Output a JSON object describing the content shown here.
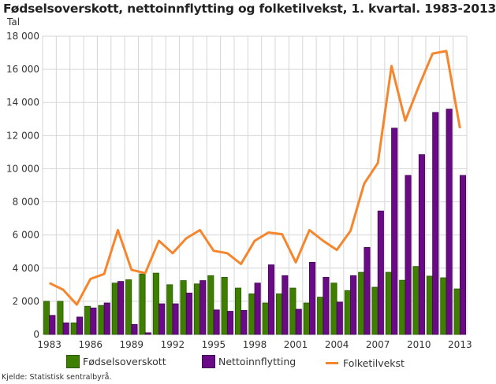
{
  "title": "Fødselsoverskott, nettoinnflytting og folketilvekst, 1. kvartal. 1983-2013",
  "unit_label": "Tal",
  "source": "Kjelde: Statistisk sentralbyrå.",
  "legend": [
    {
      "label": "Fødselsoverskott",
      "color": "#3f7f00",
      "kind": "bar"
    },
    {
      "label": "Nettoinnflytting",
      "color": "#6b0a86",
      "kind": "bar"
    },
    {
      "label": "Folketilvekst",
      "color": "#f5862d",
      "kind": "line"
    }
  ],
  "y_tick_labels": [
    "0",
    "2 000",
    "4 000",
    "6 000",
    "8 000",
    "10 000",
    "12 000",
    "14 000",
    "16 000",
    "18 000"
  ],
  "x_tick_labels": [
    "1983",
    "1986",
    "1989",
    "1992",
    "1995",
    "1998",
    "2001",
    "2004",
    "2007",
    "2010",
    "2013"
  ],
  "chart_data": {
    "type": "bar",
    "title": "Fødselsoverskott, nettoinnflytting og folketilvekst, 1. kvartal. 1983-2013",
    "xlabel": "",
    "ylabel": "Tal",
    "ylim": [
      0,
      18000
    ],
    "grid": true,
    "legend_position": "bottom",
    "categories": [
      "1983",
      "1984",
      "1985",
      "1986",
      "1987",
      "1988",
      "1989",
      "1990",
      "1991",
      "1992",
      "1993",
      "1994",
      "1995",
      "1996",
      "1997",
      "1998",
      "1999",
      "2000",
      "2001",
      "2002",
      "2003",
      "2004",
      "2005",
      "2006",
      "2007",
      "2008",
      "2009",
      "2010",
      "2011",
      "2012",
      "2013"
    ],
    "series": [
      {
        "name": "Fødselsoverskott",
        "type": "bar",
        "color": "#3f7f00",
        "values": [
          2000,
          2000,
          700,
          1700,
          1750,
          3100,
          3300,
          3650,
          3700,
          3000,
          3250,
          3050,
          3550,
          3450,
          2800,
          2450,
          1900,
          2450,
          2800,
          1900,
          2250,
          3100,
          2650,
          3750,
          2850,
          3750,
          3270,
          4100,
          3520,
          3420,
          2750
        ]
      },
      {
        "name": "Nettoinnflytting",
        "type": "bar",
        "color": "#6b0a86",
        "values": [
          1150,
          700,
          1050,
          1600,
          1900,
          3200,
          600,
          100,
          1850,
          1850,
          2500,
          3250,
          1480,
          1400,
          1450,
          3100,
          4200,
          3550,
          1520,
          4350,
          3450,
          1950,
          3550,
          5250,
          7450,
          12450,
          9600,
          10850,
          13400,
          13600,
          9600
        ]
      },
      {
        "name": "Folketilvekst",
        "type": "line",
        "color": "#f5862d",
        "values": [
          3100,
          2700,
          1800,
          3350,
          3650,
          6300,
          3900,
          3700,
          5650,
          4900,
          5800,
          6300,
          5050,
          4900,
          4250,
          5650,
          6150,
          6050,
          4350,
          6300,
          5650,
          5100,
          6250,
          9100,
          10350,
          16200,
          12900,
          15000,
          16950,
          17100,
          12450
        ]
      }
    ]
  }
}
